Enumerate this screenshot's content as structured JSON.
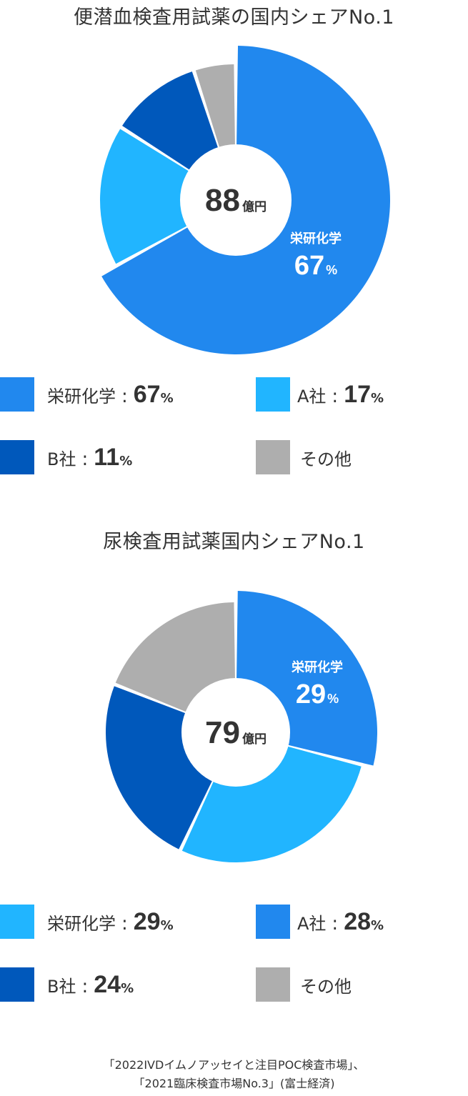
{
  "chart_data": [
    {
      "type": "pie",
      "title": "便潜血検査用試薬の国内シェアNo.1",
      "center_value": "88",
      "center_unit": "億円",
      "unit": "%",
      "slices": [
        {
          "name": "栄研化学",
          "value": 67,
          "color": "#2188EE"
        },
        {
          "name": "A社",
          "value": 17,
          "color": "#21B5FF"
        },
        {
          "name": "B社",
          "value": 11,
          "color": "#0058BB"
        },
        {
          "name": "その他",
          "value": 5,
          "color": "#AEAEAE"
        }
      ],
      "inner_label": {
        "name": "栄研化学",
        "value": "67"
      },
      "legend": [
        {
          "name": "栄研化学",
          "sep": ":",
          "value": "67",
          "unit": "%",
          "color": "#2188EE"
        },
        {
          "name": "A社",
          "sep": ":",
          "value": "17",
          "unit": "%",
          "color": "#21B5FF"
        },
        {
          "name": "B社",
          "sep": ":",
          "value": "11",
          "unit": "%",
          "color": "#0058BB"
        },
        {
          "name": "その他",
          "sep": "",
          "value": "",
          "unit": "",
          "color": "#AEAEAE"
        }
      ]
    },
    {
      "type": "pie",
      "title": "尿検査用試薬国内シェアNo.1",
      "center_value": "79",
      "center_unit": "億円",
      "unit": "%",
      "slices": [
        {
          "name": "栄研化学",
          "value": 29,
          "color": "#2188EE"
        },
        {
          "name": "A社",
          "value": 28,
          "color": "#21B5FF"
        },
        {
          "name": "B社",
          "value": 24,
          "color": "#0058BB"
        },
        {
          "name": "その他",
          "value": 19,
          "color": "#AEAEAE"
        }
      ],
      "inner_label": {
        "name": "栄研化学",
        "value": "29"
      },
      "legend": [
        {
          "name": "栄研化学",
          "sep": ":",
          "value": "29",
          "unit": "%",
          "color": "#21B5FF"
        },
        {
          "name": "A社",
          "sep": ":",
          "value": "28",
          "unit": "%",
          "color": "#2188EE"
        },
        {
          "name": "B社",
          "sep": ":",
          "value": "24",
          "unit": "%",
          "color": "#0058BB"
        },
        {
          "name": "その他",
          "sep": "",
          "value": "",
          "unit": "",
          "color": "#AEAEAE"
        }
      ]
    }
  ],
  "source": {
    "line1": "「2022IVDイムノアッセイと注目POC検査市場」、",
    "line2": "「2021臨床検査市場No.3」(富士経済)"
  }
}
